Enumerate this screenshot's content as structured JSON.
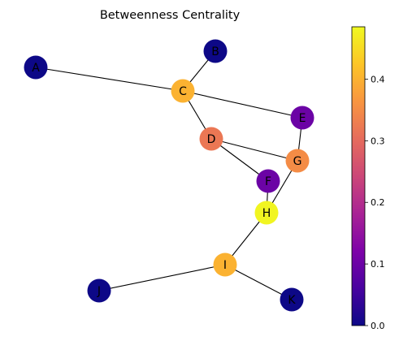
{
  "title": "Betweenness Centrality",
  "nodes": [
    {
      "id": "A",
      "value": 0.0
    },
    {
      "id": "B",
      "value": 0.0
    },
    {
      "id": "C",
      "value": 0.4
    },
    {
      "id": "D",
      "value": 0.32
    },
    {
      "id": "E",
      "value": 0.1
    },
    {
      "id": "F",
      "value": 0.1
    },
    {
      "id": "G",
      "value": 0.35
    },
    {
      "id": "H",
      "value": 0.48
    },
    {
      "id": "I",
      "value": 0.4
    },
    {
      "id": "J",
      "value": 0.0
    },
    {
      "id": "K",
      "value": 0.0
    }
  ],
  "edges": [
    [
      "A",
      "C"
    ],
    [
      "B",
      "C"
    ],
    [
      "C",
      "D"
    ],
    [
      "C",
      "E"
    ],
    [
      "E",
      "G"
    ],
    [
      "D",
      "G"
    ],
    [
      "D",
      "F"
    ],
    [
      "G",
      "H"
    ],
    [
      "F",
      "H"
    ],
    [
      "H",
      "I"
    ],
    [
      "I",
      "J"
    ],
    [
      "I",
      "K"
    ]
  ],
  "colorbar": {
    "colormap": "plasma",
    "min": 0.0,
    "max": 0.485,
    "ticks": [
      {
        "value": 0.0,
        "label": "0.0"
      },
      {
        "value": 0.1,
        "label": "0.1"
      },
      {
        "value": 0.2,
        "label": "0.2"
      },
      {
        "value": 0.3,
        "label": "0.3"
      },
      {
        "value": 0.4,
        "label": "0.4"
      }
    ]
  }
}
